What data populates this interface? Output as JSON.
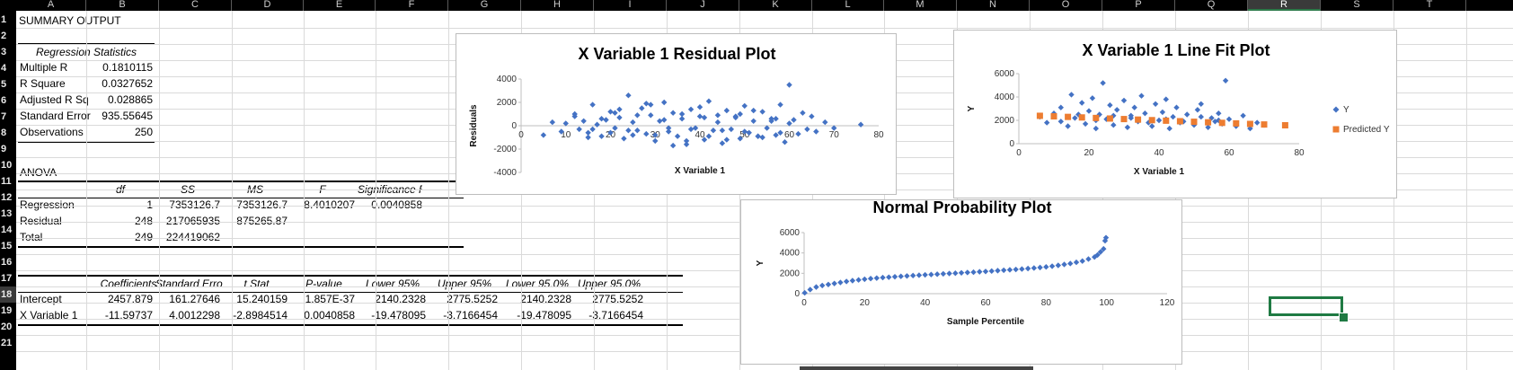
{
  "columns": [
    "A",
    "B",
    "C",
    "D",
    "E",
    "F",
    "G",
    "H",
    "I",
    "J",
    "K",
    "L",
    "M",
    "N",
    "O",
    "P",
    "Q",
    "R",
    "S",
    "T"
  ],
  "rows": [
    "1",
    "2",
    "3",
    "4",
    "5",
    "6",
    "7",
    "8",
    "9",
    "10",
    "11",
    "12",
    "13",
    "14",
    "15",
    "16",
    "17",
    "18",
    "19",
    "20",
    "21"
  ],
  "selected_column": "R",
  "selected_row": "18",
  "summary_title": "SUMMARY OUTPUT",
  "regression_stats": {
    "header": "Regression Statistics",
    "rows": [
      {
        "label": "Multiple R",
        "value": "0.1810115"
      },
      {
        "label": "R Square",
        "value": "0.0327652"
      },
      {
        "label": "Adjusted R Sq",
        "value": "0.028865"
      },
      {
        "label": "Standard Error",
        "value": "935.55645"
      },
      {
        "label": "Observations",
        "value": "250"
      }
    ]
  },
  "anova": {
    "title": "ANOVA",
    "headers": [
      "df",
      "SS",
      "MS",
      "F",
      "Significance F"
    ],
    "rows": [
      {
        "label": "Regression",
        "cells": [
          "1",
          "7353126.7",
          "7353126.7",
          "8.4010207",
          "0.0040858"
        ]
      },
      {
        "label": "Residual",
        "cells": [
          "248",
          "217065935",
          "875265.87",
          "",
          ""
        ]
      },
      {
        "label": "Total",
        "cells": [
          "249",
          "224419062",
          "",
          "",
          ""
        ]
      }
    ]
  },
  "coefficients": {
    "headers": [
      "Coefficients",
      "Standard Error",
      "t Stat",
      "P-value",
      "Lower 95%",
      "Upper 95%",
      "Lower 95.0%",
      "Upper 95.0%"
    ],
    "rows": [
      {
        "label": "Intercept",
        "cells": [
          "2457.879",
          "161.27646",
          "15.240159",
          "1.857E-37",
          "2140.2328",
          "2775.5252",
          "2140.2328",
          "2775.5252"
        ]
      },
      {
        "label": "X Variable 1",
        "cells": [
          "-11.59737",
          "4.0012298",
          "-2.8984514",
          "0.0040858",
          "-19.478095",
          "-3.7166454",
          "-19.478095",
          "-3.7166454"
        ]
      }
    ]
  },
  "colors": {
    "series_blue": "#4472c4",
    "predicted_orange": "#ed7d31",
    "selection_green": "#1f7a43"
  },
  "chart_data": [
    {
      "type": "scatter",
      "title": "X Variable 1  Residual Plot",
      "xlabel": "X Variable 1",
      "ylabel": "Residuals",
      "xlim": [
        0,
        80
      ],
      "ylim": [
        -4000,
        4000
      ],
      "x_ticks": [
        "0",
        "10",
        "20",
        "30",
        "40",
        "50",
        "60",
        "70",
        "80"
      ],
      "y_ticks": [
        "-4000",
        "-2000",
        "0",
        "2000",
        "4000"
      ],
      "series": [
        {
          "x": [
            5,
            7,
            9,
            10,
            12,
            13,
            14,
            15,
            16,
            17,
            18,
            19,
            20,
            21,
            22,
            23,
            24,
            25,
            26,
            27,
            28,
            29,
            30,
            31,
            32,
            33,
            34,
            35,
            36,
            37,
            38,
            39,
            40,
            41,
            42,
            43,
            44,
            45,
            46,
            47,
            48,
            49,
            50,
            51,
            52,
            53,
            54,
            55,
            56,
            57,
            58,
            59,
            60,
            61,
            62,
            63,
            64,
            65,
            66,
            68,
            70,
            76,
            12,
            15,
            18,
            20,
            22,
            24,
            26,
            28,
            30,
            32,
            34,
            36,
            38,
            40,
            42,
            44,
            46,
            48,
            50,
            52,
            54,
            56,
            58,
            60,
            16,
            21,
            25,
            29,
            33,
            37,
            41,
            45,
            49,
            53,
            57
          ],
          "y": [
            -800,
            300,
            -500,
            200,
            800,
            -300,
            400,
            -600,
            1800,
            100,
            -900,
            500,
            1200,
            -200,
            700,
            -1100,
            2600,
            300,
            -400,
            1500,
            -700,
            900,
            -1300,
            400,
            2000,
            -500,
            1100,
            -900,
            600,
            -1600,
            1400,
            -200,
            800,
            -1200,
            2100,
            -400,
            900,
            -1500,
            1300,
            -300,
            700,
            -1100,
            1700,
            -600,
            400,
            -900,
            1200,
            -200,
            600,
            -800,
            1800,
            -1400,
            3500,
            500,
            -700,
            1100,
            -300,
            800,
            -500,
            300,
            -200,
            100,
            1000,
            -1000,
            600,
            -600,
            1400,
            -400,
            900,
            1900,
            -800,
            500,
            -1700,
            1000,
            -300,
            1600,
            -900,
            300,
            -1200,
            800,
            -500,
            1300,
            -1000,
            400,
            -600,
            200,
            -300,
            1100,
            -800,
            1800,
            -200,
            -1300,
            700,
            -400,
            1000,
            -900,
            600
          ]
        }
      ]
    },
    {
      "type": "scatter",
      "title": "X Variable 1 Line Fit  Plot",
      "xlabel": "X Variable 1",
      "ylabel": "Y",
      "xlim": [
        0,
        80
      ],
      "ylim": [
        0,
        6000
      ],
      "x_ticks": [
        "0",
        "20",
        "40",
        "60",
        "80"
      ],
      "y_ticks": [
        "0",
        "2000",
        "4000",
        "6000"
      ],
      "legend": "right",
      "series": [
        {
          "name": "Y",
          "x": [
            6,
            8,
            10,
            12,
            14,
            15,
            16,
            18,
            19,
            20,
            21,
            22,
            23,
            24,
            25,
            26,
            27,
            28,
            30,
            31,
            32,
            33,
            34,
            35,
            36,
            38,
            39,
            40,
            41,
            42,
            43,
            44,
            45,
            46,
            48,
            50,
            51,
            52,
            54,
            55,
            56,
            57,
            58,
            59,
            60,
            62,
            64,
            66,
            68,
            70,
            12,
            17,
            22,
            27,
            32,
            37,
            42,
            47,
            52,
            57
          ],
          "y": [
            2300,
            1800,
            2600,
            3100,
            1500,
            4200,
            2200,
            3500,
            1700,
            2800,
            3900,
            1300,
            2500,
            5200,
            2100,
            3300,
            1600,
            2900,
            3700,
            1400,
            2400,
            3100,
            1900,
            4100,
            2600,
            1500,
            3400,
            2000,
            2700,
            3800,
            1300,
            2300,
            3100,
            1800,
            2500,
            1600,
            2900,
            3400,
            1400,
            2200,
            1900,
            2600,
            1700,
            5400,
            2100,
            1500,
            2400,
            1300,
            1800,
            1600,
            1900,
            2500,
            2000,
            2400,
            2200,
            1800,
            2100,
            1900,
            2300,
            2000
          ]
        },
        {
          "name": "Predicted Y",
          "x": [
            6,
            10,
            14,
            18,
            22,
            26,
            30,
            34,
            38,
            42,
            46,
            50,
            54,
            58,
            62,
            66,
            70,
            76
          ],
          "y": [
            2388,
            2342,
            2295,
            2249,
            2203,
            2156,
            2110,
            2064,
            2017,
            1971,
            1924,
            1878,
            1832,
            1785,
            1739,
            1692,
            1646,
            1577
          ]
        }
      ]
    },
    {
      "type": "scatter",
      "title": "Normal Probability Plot",
      "xlabel": "Sample Percentile",
      "ylabel": "Y",
      "xlim": [
        0,
        120
      ],
      "ylim": [
        0,
        6000
      ],
      "x_ticks": [
        "0",
        "20",
        "40",
        "60",
        "80",
        "100",
        "120"
      ],
      "y_ticks": [
        "0",
        "2000",
        "4000",
        "6000"
      ],
      "series": [
        {
          "x": [
            0.2,
            2,
            4,
            6,
            8,
            10,
            12,
            14,
            16,
            18,
            20,
            22,
            24,
            26,
            28,
            30,
            32,
            34,
            36,
            38,
            40,
            42,
            44,
            46,
            48,
            50,
            52,
            54,
            56,
            58,
            60,
            62,
            64,
            66,
            68,
            70,
            72,
            74,
            76,
            78,
            80,
            82,
            84,
            86,
            88,
            90,
            92,
            94,
            96,
            97,
            98,
            99,
            99.5,
            99.8
          ],
          "y": [
            80,
            400,
            650,
            800,
            900,
            1000,
            1100,
            1200,
            1280,
            1350,
            1420,
            1480,
            1530,
            1580,
            1620,
            1660,
            1700,
            1740,
            1780,
            1810,
            1850,
            1880,
            1910,
            1950,
            1980,
            2010,
            2050,
            2080,
            2110,
            2150,
            2180,
            2220,
            2260,
            2300,
            2340,
            2380,
            2420,
            2470,
            2520,
            2570,
            2630,
            2700,
            2780,
            2870,
            2960,
            3080,
            3200,
            3400,
            3600,
            3800,
            4100,
            4400,
            5200,
            5500
          ]
        }
      ]
    }
  ]
}
